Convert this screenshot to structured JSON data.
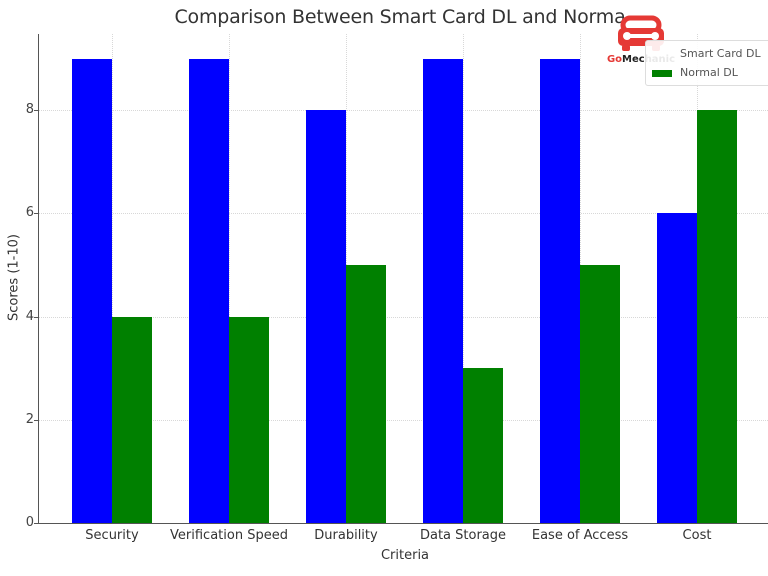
{
  "chart_data": {
    "type": "bar",
    "title": "Comparison Between Smart Card DL and Norma",
    "xlabel": "Criteria",
    "ylabel": "Scores (1-10)",
    "categories": [
      "Security",
      "Verification Speed",
      "Durability",
      "Data Storage",
      "Ease of Access",
      "Cost"
    ],
    "series": [
      {
        "name": "Smart Card DL",
        "color": "#0000ff",
        "values": [
          9,
          9,
          8,
          9,
          9,
          6
        ]
      },
      {
        "name": "Normal DL",
        "color": "#008000",
        "values": [
          4,
          4,
          5,
          3,
          5,
          8
        ]
      }
    ],
    "yticks": [
      0,
      2,
      4,
      6,
      8
    ],
    "ylim": [
      0,
      9.5
    ],
    "grid": true,
    "legend_position": "upper right"
  },
  "watermark": {
    "brand_prefix": "Go",
    "brand_suffix": "Mechanic",
    "prefix_color": "#e53935",
    "suffix_color": "#222222",
    "icon": "car-wrench-icon"
  }
}
